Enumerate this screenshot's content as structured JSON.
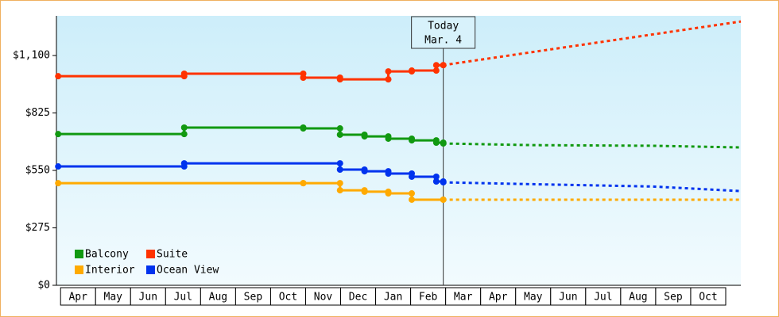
{
  "chart_data": {
    "type": "step-line",
    "categories": [
      "Apr",
      "May",
      "Jun",
      "Jul",
      "Aug",
      "Sep",
      "Oct",
      "Nov",
      "Dec",
      "Jan",
      "Feb",
      "Mar",
      "Apr",
      "May",
      "Jun",
      "Jul",
      "Aug",
      "Sep",
      "Oct"
    ],
    "xlim": [
      -0.05,
      19.5
    ],
    "ylim": [
      0,
      1290
    ],
    "yticks": [
      {
        "value": 0,
        "label": "$0"
      },
      {
        "value": 275,
        "label": "$275"
      },
      {
        "value": 550,
        "label": "$550"
      },
      {
        "value": 825,
        "label": "$825"
      },
      {
        "value": 1100,
        "label": "$1,100"
      }
    ],
    "annotation": {
      "lines": [
        "Today",
        "Mar. 4"
      ],
      "x": 11.0
    },
    "legend": "lower-left",
    "series": [
      {
        "name": "Balcony",
        "color": "#119911",
        "x": [
          0,
          3.6,
          7.0,
          8.05,
          8.75,
          9.43,
          10.1,
          10.8,
          11.0
        ],
        "values": [
          724,
          755,
          751,
          721,
          713,
          702,
          694,
          683,
          679
        ],
        "forecast": {
          "x": [
            11.0,
            13.57,
            16.98,
            19.5
          ],
          "values": [
            679,
            671,
            668,
            660
          ]
        }
      },
      {
        "name": "Suite",
        "color": "#ff3300",
        "x": [
          0,
          3.6,
          7.0,
          8.05,
          9.43,
          10.1,
          10.8,
          11.0
        ],
        "values": [
          1001,
          1013,
          994,
          986,
          1024,
          1028,
          1054,
          1054
        ],
        "forecast": {
          "x": [
            11.0,
            19.5
          ],
          "values": [
            1054,
            1263
          ]
        }
      },
      {
        "name": "Interior",
        "color": "#ffaa00",
        "x": [
          0,
          7.0,
          8.05,
          8.75,
          9.43,
          10.1,
          11.0
        ],
        "values": [
          489,
          489,
          455,
          448,
          440,
          410,
          410
        ],
        "forecast": {
          "x": [
            11.0,
            19.5
          ],
          "values": [
            410,
            410
          ]
        }
      },
      {
        "name": "Ocean View",
        "color": "#0033ee",
        "x": [
          0,
          3.6,
          8.05,
          8.75,
          9.43,
          10.1,
          10.8,
          11.0
        ],
        "values": [
          569,
          584,
          554,
          546,
          535,
          520,
          497,
          493
        ],
        "forecast": {
          "x": [
            11.0,
            13.57,
            16.98,
            19.5
          ],
          "values": [
            493,
            484,
            473,
            451
          ]
        }
      }
    ]
  }
}
